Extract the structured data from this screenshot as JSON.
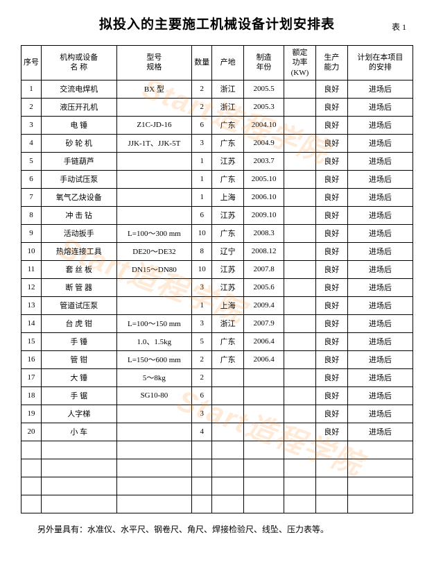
{
  "title": "拟投入的主要施工机械设备计划安排表",
  "table_label": "表 1",
  "columns": [
    "序号",
    "机构或设备\n名 称",
    "型号\n规格",
    "数量",
    "产地",
    "制造\n年份",
    "额定\n功率\n(KW)",
    "生产\n能力",
    "计划在本项目\n的安排"
  ],
  "rows": [
    [
      "1",
      "交流电焊机",
      "BX 型",
      "2",
      "浙江",
      "2005.5",
      "",
      "良好",
      "进场后"
    ],
    [
      "2",
      "液压开孔机",
      "",
      "2",
      "浙江",
      "2005.3",
      "",
      "良好",
      "进场后"
    ],
    [
      "3",
      "电  锤",
      "Z1C-JD-16",
      "6",
      "广东",
      "2004.10",
      "",
      "良好",
      "进场后"
    ],
    [
      "4",
      "砂 轮 机",
      "JJK-1T、JJK-5T",
      "3",
      "广东",
      "2004.9",
      "",
      "良好",
      "进场后"
    ],
    [
      "5",
      "手链葫芦",
      "",
      "1",
      "江苏",
      "2003.7",
      "",
      "良好",
      "进场后"
    ],
    [
      "6",
      "手动试压泵",
      "",
      "1",
      "广东",
      "2005.10",
      "",
      "良好",
      "进场后"
    ],
    [
      "7",
      "氧气乙炔设备",
      "",
      "1",
      "上海",
      "2006.10",
      "",
      "良好",
      "进场后"
    ],
    [
      "8",
      "冲 击 钻",
      "",
      "6",
      "江苏",
      "2009.10",
      "",
      "良好",
      "进场后"
    ],
    [
      "9",
      "活动扳手",
      "L=100～300 mm",
      "10",
      "广东",
      "2008.3",
      "",
      "良好",
      "进场后"
    ],
    [
      "10",
      "热熔连接工具",
      "DE20～DE32",
      "8",
      "辽宁",
      "2008.12",
      "",
      "良好",
      "进场后"
    ],
    [
      "11",
      "套 丝 板",
      "DN15～DN80",
      "10",
      "江苏",
      "2007.8",
      "",
      "良好",
      "进场后"
    ],
    [
      "12",
      "断 管 器",
      "",
      "3",
      "江苏",
      "2005.6",
      "",
      "良好",
      "进场后"
    ],
    [
      "13",
      "管道试压泵",
      "",
      "1",
      "上海",
      "2009.4",
      "",
      "良好",
      "进场后"
    ],
    [
      "14",
      "台 虎 钳",
      "L=100～150 mm",
      "3",
      "浙江",
      "2007.9",
      "",
      "良好",
      "进场后"
    ],
    [
      "15",
      "手  锤",
      "1.0、1.5kg",
      "5",
      "广东",
      "2006.4",
      "",
      "良好",
      "进场后"
    ],
    [
      "16",
      "管  钳",
      "L=150～600 mm",
      "2",
      "广东",
      "2006.4",
      "",
      "良好",
      "进场后"
    ],
    [
      "17",
      "大  锤",
      "5～8kg",
      "2",
      "",
      "",
      "",
      "良好",
      "进场后"
    ],
    [
      "18",
      "手  锯",
      "SG10-80",
      "6",
      "",
      "",
      "",
      "良好",
      "进场后"
    ],
    [
      "19",
      "人字梯",
      "",
      "3",
      "",
      "",
      "",
      "良好",
      "进场后"
    ],
    [
      "20",
      "小  车",
      "",
      "4",
      "",
      "",
      "",
      "良好",
      "进场后"
    ],
    [
      "",
      "",
      "",
      "",
      "",
      "",
      "",
      "",
      ""
    ],
    [
      "",
      "",
      "",
      "",
      "",
      "",
      "",
      "",
      ""
    ],
    [
      "",
      "",
      "",
      "",
      "",
      "",
      "",
      "",
      ""
    ],
    [
      "",
      "",
      "",
      "",
      "",
      "",
      "",
      "",
      ""
    ]
  ],
  "footnote": "另外量具有：水准仪、水平尺、钢卷尺、角尺、焊接检验尺、线坠、压力表等。",
  "watermark": "Start造程学院",
  "colors": {
    "text": "#000000",
    "border": "#000000",
    "background": "#ffffff",
    "watermark": "rgba(255,140,40,0.18)"
  },
  "fontsize": {
    "title": 19,
    "body": 11,
    "footnote": 12
  }
}
